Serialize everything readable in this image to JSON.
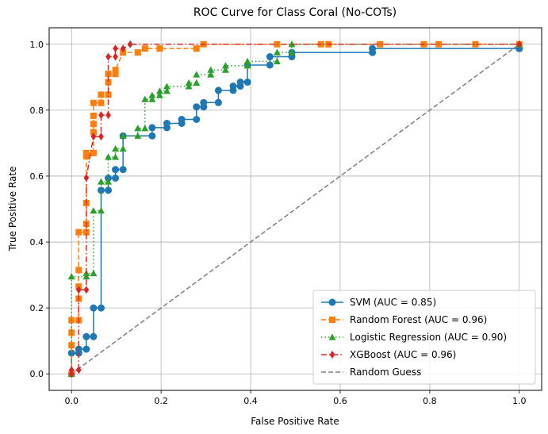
{
  "chart_data": {
    "type": "line",
    "title": "ROC Curve for Class Coral (No-COTs)",
    "xlabel": "False Positive Rate",
    "ylabel": "True Positive Rate",
    "xlim": [
      -0.05,
      1.05
    ],
    "ylim": [
      -0.05,
      1.05
    ],
    "xticks": [
      0.0,
      0.2,
      0.4,
      0.6,
      0.8,
      1.0
    ],
    "yticks": [
      0.0,
      0.2,
      0.4,
      0.6,
      0.8,
      1.0
    ],
    "xtick_labels": [
      "0.0",
      "0.2",
      "0.4",
      "0.6",
      "0.8",
      "1.0"
    ],
    "ytick_labels": [
      "0.0",
      "0.2",
      "0.4",
      "0.6",
      "0.8",
      "1.0"
    ],
    "grid": true,
    "legend_position": "lower-right",
    "series": [
      {
        "name": "SVM (AUC = 0.85)",
        "color": "#1f77b4",
        "marker": "circle",
        "linestyle": "solid",
        "x": [
          0.0,
          0.0,
          0.016,
          0.016,
          0.033,
          0.033,
          0.049,
          0.049,
          0.066,
          0.066,
          0.082,
          0.082,
          0.098,
          0.098,
          0.115,
          0.115,
          0.18,
          0.18,
          0.213,
          0.213,
          0.246,
          0.246,
          0.279,
          0.279,
          0.295,
          0.295,
          0.328,
          0.328,
          0.361,
          0.361,
          0.377,
          0.377,
          0.393,
          0.393,
          0.443,
          0.443,
          0.492,
          0.492,
          0.672,
          0.672,
          1.0,
          1.0
        ],
        "y": [
          0.0,
          0.063,
          0.063,
          0.075,
          0.075,
          0.113,
          0.113,
          0.2,
          0.2,
          0.557,
          0.557,
          0.594,
          0.594,
          0.62,
          0.62,
          0.722,
          0.722,
          0.747,
          0.747,
          0.76,
          0.76,
          0.772,
          0.772,
          0.81,
          0.81,
          0.823,
          0.823,
          0.86,
          0.86,
          0.873,
          0.873,
          0.885,
          0.885,
          0.937,
          0.937,
          0.962,
          0.962,
          0.975,
          0.975,
          0.987,
          0.987,
          0.987
        ]
      },
      {
        "name": "Random Forest (AUC = 0.96)",
        "color": "#ff7f0e",
        "marker": "square",
        "linestyle": "dashed",
        "x": [
          0.0,
          0.0,
          0.0,
          0.0,
          0.016,
          0.016,
          0.016,
          0.016,
          0.016,
          0.033,
          0.033,
          0.033,
          0.033,
          0.033,
          0.049,
          0.049,
          0.049,
          0.049,
          0.049,
          0.066,
          0.066,
          0.082,
          0.082,
          0.082,
          0.098,
          0.098,
          0.115,
          0.148,
          0.164,
          0.197,
          0.279,
          0.295,
          0.459,
          0.557,
          0.574,
          0.689,
          0.787,
          0.82,
          0.902,
          1.0
        ],
        "y": [
          0.0,
          0.087,
          0.125,
          0.163,
          0.163,
          0.228,
          0.265,
          0.315,
          0.43,
          0.43,
          0.455,
          0.518,
          0.66,
          0.67,
          0.67,
          0.733,
          0.758,
          0.783,
          0.822,
          0.822,
          0.847,
          0.847,
          0.885,
          0.91,
          0.91,
          0.922,
          0.975,
          0.975,
          0.987,
          0.987,
          0.987,
          1.0,
          1.0,
          1.0,
          1.0,
          1.0,
          1.0,
          1.0,
          1.0,
          1.0
        ]
      },
      {
        "name": "Logistic Regression (AUC = 0.90)",
        "color": "#2ca02c",
        "marker": "triangle",
        "linestyle": "dotted",
        "x": [
          0.0,
          0.0,
          0.033,
          0.033,
          0.049,
          0.049,
          0.066,
          0.066,
          0.082,
          0.082,
          0.098,
          0.098,
          0.115,
          0.115,
          0.148,
          0.148,
          0.164,
          0.164,
          0.18,
          0.18,
          0.197,
          0.197,
          0.213,
          0.213,
          0.262,
          0.262,
          0.279,
          0.279,
          0.311,
          0.311,
          0.344,
          0.344,
          0.393,
          0.393,
          0.459,
          0.459,
          0.492,
          0.492,
          1.0
        ],
        "y": [
          0.0,
          0.295,
          0.295,
          0.305,
          0.305,
          0.495,
          0.495,
          0.583,
          0.583,
          0.658,
          0.658,
          0.683,
          0.683,
          0.722,
          0.722,
          0.745,
          0.745,
          0.833,
          0.833,
          0.845,
          0.845,
          0.858,
          0.858,
          0.872,
          0.872,
          0.883,
          0.883,
          0.908,
          0.908,
          0.922,
          0.922,
          0.935,
          0.935,
          0.948,
          0.948,
          0.975,
          0.975,
          1.0,
          1.0
        ]
      },
      {
        "name": "XGBoost (AUC = 0.96)",
        "color": "#d62728",
        "marker": "diamond",
        "linestyle": "dashdot",
        "x": [
          0.0,
          0.0,
          0.016,
          0.016,
          0.033,
          0.033,
          0.049,
          0.066,
          0.066,
          0.082,
          0.082,
          0.098,
          0.098,
          0.115,
          0.131,
          1.0
        ],
        "y": [
          0.0,
          0.012,
          0.012,
          0.255,
          0.255,
          0.595,
          0.72,
          0.72,
          0.785,
          0.785,
          0.962,
          0.962,
          0.987,
          0.987,
          1.0,
          1.0
        ]
      },
      {
        "name": "Random Guess",
        "color": "#7f7f7f",
        "marker": "none",
        "linestyle": "dashed",
        "x": [
          0.0,
          1.0
        ],
        "y": [
          0.0,
          1.0
        ]
      }
    ]
  }
}
